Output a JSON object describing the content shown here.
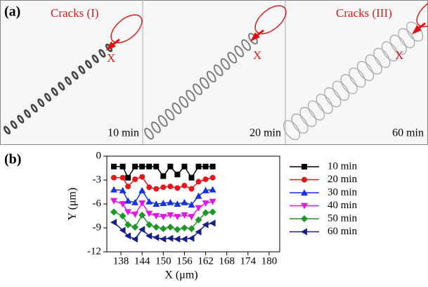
{
  "panel_a": {
    "label": "(a)",
    "frames": [
      {
        "crack_label": "Cracks (I)",
        "point_label": "X",
        "time": "10 min"
      },
      {
        "point_label": "X",
        "time": "20 min"
      },
      {
        "crack_label": "Cracks (III)",
        "point_label": "X",
        "time": "60 min"
      }
    ]
  },
  "chart_data": {
    "type": "line",
    "panel_label": "(b)",
    "x_label": "X (μm)",
    "y_label": "Y (μm)",
    "x": [
      136,
      138.5,
      140,
      142,
      144,
      146,
      148,
      150,
      152,
      154,
      156,
      158,
      160,
      162,
      164
    ],
    "xlim": [
      134,
      183
    ],
    "xticks": [
      138,
      144,
      150,
      156,
      162,
      168,
      174,
      180
    ],
    "ylim": [
      -12,
      0
    ],
    "yticks": [
      -12,
      -9,
      -6,
      -3,
      0
    ],
    "series": [
      {
        "name": "10 min",
        "color": "#000000",
        "marker": "square",
        "values": [
          -1.3,
          -1.3,
          -2.7,
          -1.3,
          -1.3,
          -1.3,
          -1.3,
          -2.5,
          -1.3,
          -2.3,
          -1.3,
          -2.7,
          -1.3,
          -1.3,
          -1.3
        ]
      },
      {
        "name": "20 min",
        "color": "#e8141c",
        "marker": "circle",
        "values": [
          -2.7,
          -2.7,
          -3.8,
          -2.9,
          -2.6,
          -3.9,
          -4.1,
          -3.9,
          -3.8,
          -4.0,
          -3.7,
          -4.1,
          -3.2,
          -2.9,
          -2.7
        ]
      },
      {
        "name": "30 min",
        "color": "#1432e6",
        "marker": "triangle-up",
        "values": [
          -4.2,
          -4.3,
          -5.6,
          -5.8,
          -4.3,
          -5.7,
          -6.0,
          -5.9,
          -5.8,
          -6.0,
          -5.8,
          -6.1,
          -5.0,
          -4.3,
          -4.2
        ]
      },
      {
        "name": "40 min",
        "color": "#e614e6",
        "marker": "triangle-down",
        "values": [
          -5.6,
          -6.0,
          -7.0,
          -7.3,
          -5.9,
          -7.2,
          -7.5,
          -7.6,
          -7.4,
          -7.6,
          -7.4,
          -7.6,
          -6.5,
          -5.9,
          -5.7
        ]
      },
      {
        "name": "50 min",
        "color": "#1e9628",
        "marker": "diamond",
        "values": [
          -7.0,
          -7.5,
          -8.6,
          -8.9,
          -7.4,
          -8.6,
          -8.9,
          -9.1,
          -8.9,
          -9.2,
          -9.0,
          -9.1,
          -8.0,
          -7.1,
          -7.0
        ]
      },
      {
        "name": "60 min",
        "color": "#141e8c",
        "marker": "triangle-left",
        "values": [
          -8.3,
          -9.3,
          -10.0,
          -10.4,
          -9.2,
          -10.0,
          -10.2,
          -10.4,
          -10.3,
          -10.4,
          -10.4,
          -10.3,
          -9.5,
          -8.6,
          -8.4
        ]
      }
    ]
  }
}
